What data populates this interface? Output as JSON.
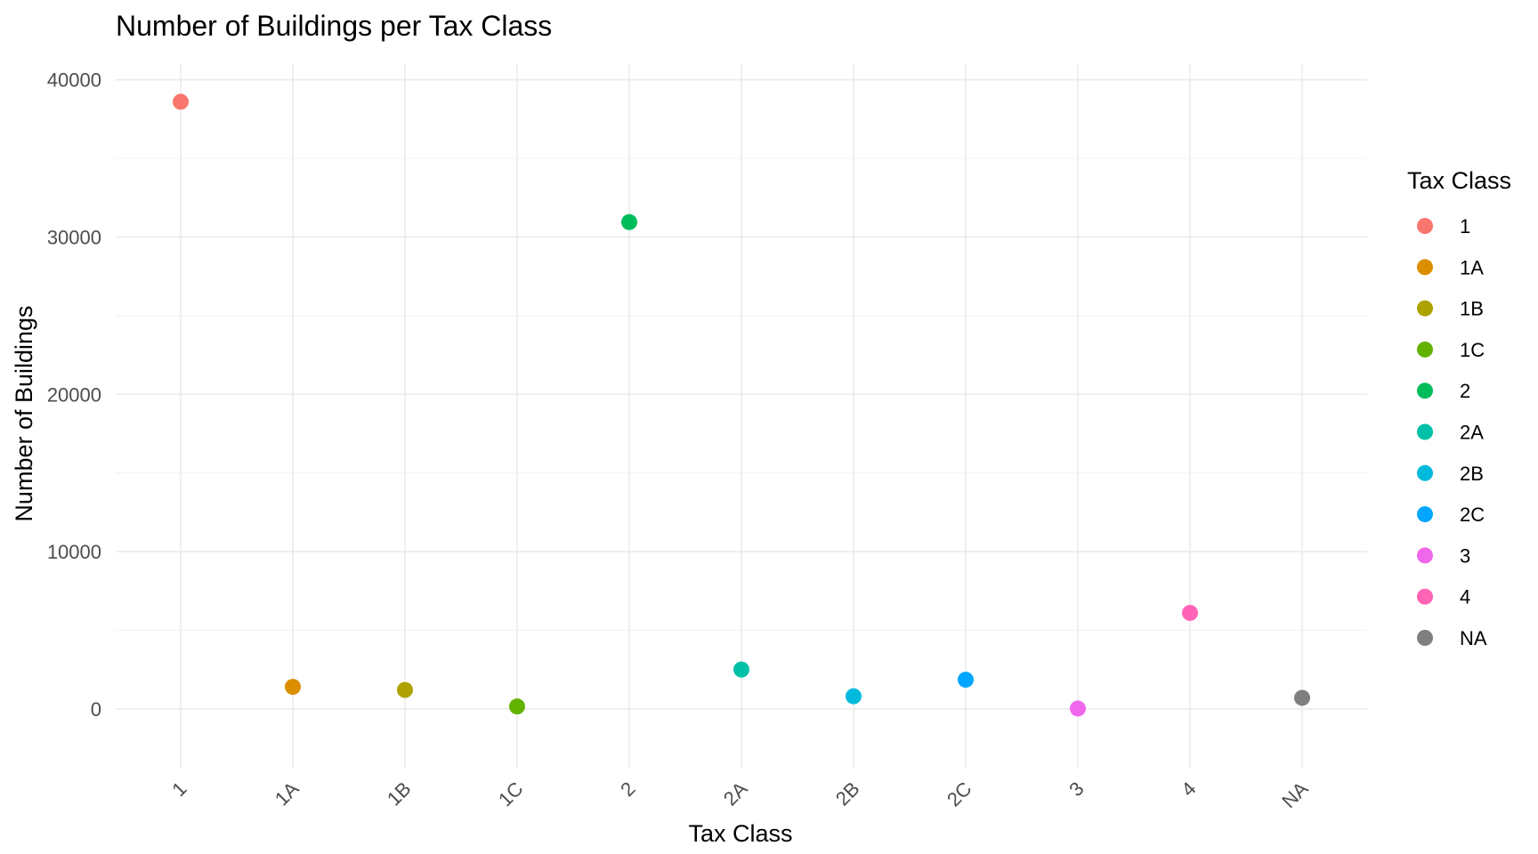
{
  "chart_data": {
    "type": "scatter",
    "title": "Number of Buildings per Tax Class",
    "xlabel": "Tax Class",
    "ylabel": "Number of Buildings",
    "categories": [
      "1",
      "1A",
      "1B",
      "1C",
      "2",
      "2A",
      "2B",
      "2C",
      "3",
      "4",
      "NA"
    ],
    "values": [
      38600,
      1400,
      1200,
      150,
      30950,
      2500,
      800,
      1850,
      20,
      6100,
      700
    ],
    "ylim": [
      0,
      40000
    ],
    "yticks": [
      "0",
      "10000",
      "20000",
      "30000",
      "40000"
    ],
    "ytick_values": [
      0,
      10000,
      20000,
      30000,
      40000
    ],
    "grid": true,
    "legend": {
      "title": "Tax Class",
      "placement": "right",
      "labels": [
        "1",
        "1A",
        "1B",
        "1C",
        "2",
        "2A",
        "2B",
        "2C",
        "3",
        "4",
        "NA"
      ]
    },
    "colors": [
      "#F8766D",
      "#DB8E00",
      "#AEA200",
      "#64B200",
      "#00BD5C",
      "#00C1A7",
      "#00BADE",
      "#00A6FF",
      "#B385FF",
      "#EF67EB",
      "#FF63B6",
      "#7F7F7F"
    ]
  }
}
